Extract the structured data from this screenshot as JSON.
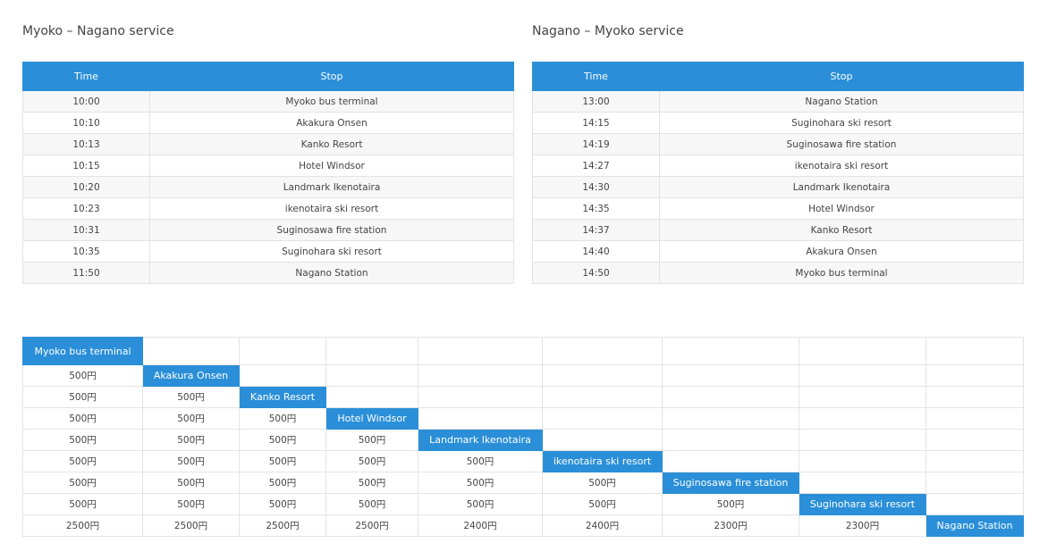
{
  "left": {
    "title": "Myoko – Nagano service",
    "headers": [
      "Time",
      "Stop"
    ],
    "rows": [
      [
        "10:00",
        "Myoko bus terminal"
      ],
      [
        "10:10",
        "Akakura Onsen"
      ],
      [
        "10:13",
        "Kanko Resort"
      ],
      [
        "10:15",
        "Hotel Windsor"
      ],
      [
        "10:20",
        "Landmark Ikenotaira"
      ],
      [
        "10:23",
        "ikenotaira ski resort"
      ],
      [
        "10:31",
        "Suginosawa fire station"
      ],
      [
        "10:35",
        "Suginohara ski resort"
      ],
      [
        "11:50",
        "Nagano Station"
      ]
    ]
  },
  "right": {
    "title": "Nagano – Myoko service",
    "headers": [
      "Time",
      "Stop"
    ],
    "rows": [
      [
        "13:00",
        "Nagano Station"
      ],
      [
        "14:15",
        "Suginohara ski resort"
      ],
      [
        "14:19",
        "Suginosawa fire station"
      ],
      [
        "14:27",
        "ikenotaira ski resort"
      ],
      [
        "14:30",
        "Landmark Ikenotaira"
      ],
      [
        "14:35",
        "Hotel Windsor"
      ],
      [
        "14:37",
        "Kanko Resort"
      ],
      [
        "14:40",
        "Akakura Onsen"
      ],
      [
        "14:50",
        "Myoko bus terminal"
      ]
    ]
  },
  "fares": {
    "stops": [
      "Myoko bus terminal",
      "Akakura Onsen",
      "Kanko Resort",
      "Hotel Windsor",
      "Landmark Ikenotaira",
      "ikenotaira ski resort",
      "Suginosawa fire station",
      "Suginohara ski resort",
      "Nagano Station"
    ],
    "rows": [
      [],
      [
        "500円"
      ],
      [
        "500円",
        "500円"
      ],
      [
        "500円",
        "500円",
        "500円"
      ],
      [
        "500円",
        "500円",
        "500円",
        "500円"
      ],
      [
        "500円",
        "500円",
        "500円",
        "500円",
        "500円"
      ],
      [
        "500円",
        "500円",
        "500円",
        "500円",
        "500円",
        "500円"
      ],
      [
        "500円",
        "500円",
        "500円",
        "500円",
        "500円",
        "500円",
        "500円"
      ],
      [
        "2500円",
        "2500円",
        "2500円",
        "2500円",
        "2400円",
        "2400円",
        "2300円",
        "2300円"
      ]
    ],
    "accent_color": "#2a8fd8"
  }
}
